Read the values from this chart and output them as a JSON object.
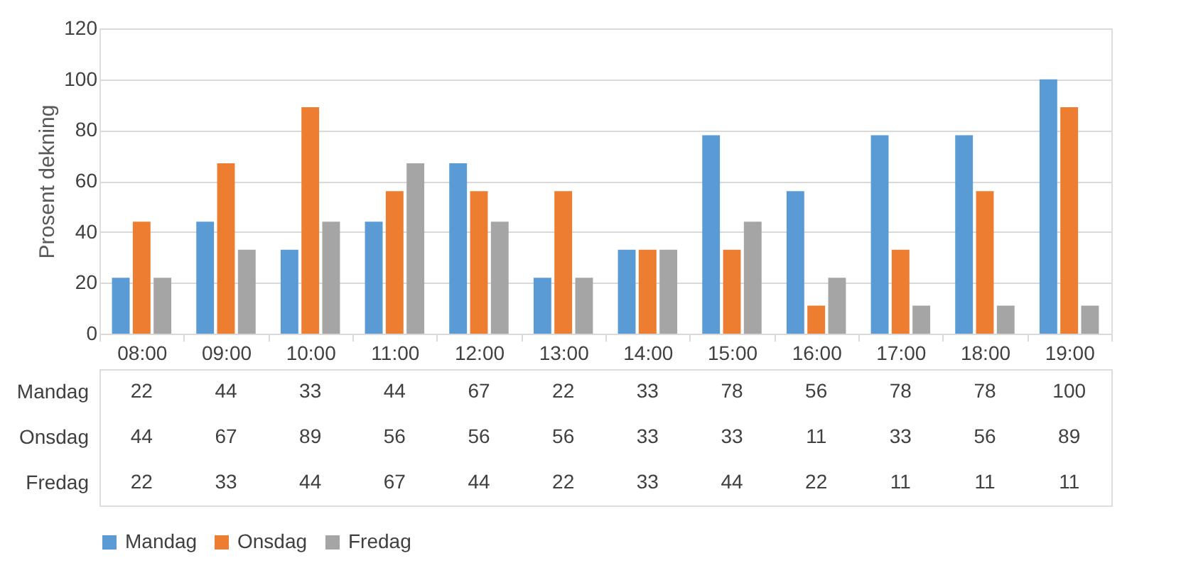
{
  "chart_data": {
    "type": "bar",
    "ylabel": "Prosent dekning",
    "categories": [
      "08:00",
      "09:00",
      "10:00",
      "11:00",
      "12:00",
      "13:00",
      "14:00",
      "15:00",
      "16:00",
      "17:00",
      "18:00",
      "19:00"
    ],
    "series": [
      {
        "name": "Mandag",
        "color": "#5b9bd5",
        "values": [
          22,
          44,
          33,
          44,
          67,
          22,
          33,
          78,
          56,
          78,
          78,
          100
        ]
      },
      {
        "name": "Onsdag",
        "color": "#ed7d31",
        "values": [
          44,
          67,
          89,
          56,
          56,
          56,
          33,
          33,
          11,
          33,
          56,
          89
        ]
      },
      {
        "name": "Fredag",
        "color": "#a5a5a5",
        "values": [
          22,
          33,
          44,
          67,
          44,
          22,
          33,
          44,
          22,
          11,
          11,
          11
        ]
      }
    ],
    "ylim": [
      0,
      120
    ],
    "yticks": [
      0,
      20,
      40,
      60,
      80,
      100,
      120
    ],
    "grid": "y",
    "legend": "bottom",
    "data_labels": true
  }
}
